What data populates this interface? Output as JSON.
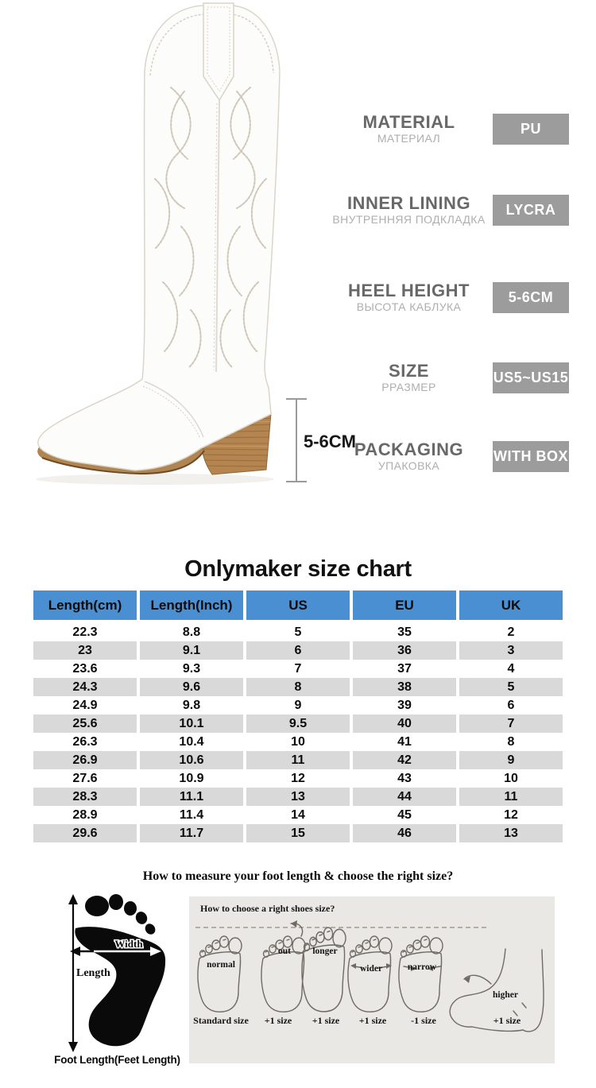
{
  "colors": {
    "table_header_bg": "#4a8fd2",
    "table_row_alt_bg": "#d9d9d9",
    "badge_bg": "#9c9c9c",
    "badge_text": "#ffffff",
    "panel_bg": "#e9e8e4",
    "heel_wood": "#b5854f"
  },
  "product": {
    "heel_annotation": "5-6CM",
    "specs": [
      {
        "label": "MATERIAL",
        "label_ru": "МАТЕРИАЛ",
        "value": "PU"
      },
      {
        "label": "INNER LINING",
        "label_ru": "ВНУТРЕННЯЯ ПОДКЛАДКА",
        "value": "LYCRA"
      },
      {
        "label": "HEEL HEIGHT",
        "label_ru": "ВЫСОТА КАБЛУКА",
        "value": "5-6CM"
      },
      {
        "label": "SIZE",
        "label_ru": "РРАЗМЕР",
        "value": "US5~US15"
      },
      {
        "label": "PACKAGING",
        "label_ru": "УПАКОВКА",
        "value": "WITH BOX"
      }
    ]
  },
  "size_chart": {
    "title": "Onlymaker size chart",
    "columns": [
      "Length(cm)",
      "Length(Inch)",
      "US",
      "EU",
      "UK"
    ],
    "rows": [
      [
        "22.3",
        "8.8",
        "5",
        "35",
        "2"
      ],
      [
        "23",
        "9.1",
        "6",
        "36",
        "3"
      ],
      [
        "23.6",
        "9.3",
        "7",
        "37",
        "4"
      ],
      [
        "24.3",
        "9.6",
        "8",
        "38",
        "5"
      ],
      [
        "24.9",
        "9.8",
        "9",
        "39",
        "6"
      ],
      [
        "25.6",
        "10.1",
        "9.5",
        "40",
        "7"
      ],
      [
        "26.3",
        "10.4",
        "10",
        "41",
        "8"
      ],
      [
        "26.9",
        "10.6",
        "11",
        "42",
        "9"
      ],
      [
        "27.6",
        "10.9",
        "12",
        "43",
        "10"
      ],
      [
        "28.3",
        "11.1",
        "13",
        "44",
        "11"
      ],
      [
        "28.9",
        "11.4",
        "14",
        "45",
        "12"
      ],
      [
        "29.6",
        "11.7",
        "15",
        "46",
        "13"
      ]
    ]
  },
  "measure_section": {
    "heading": "How to measure your foot length & choose the right size?",
    "footprint": {
      "width_label": "Width",
      "length_label": "Length",
      "caption": "Foot Length(Feet Length)"
    },
    "panel": {
      "title": "How to choose a right shoes size?",
      "feet": [
        {
          "type_label": "normal",
          "size_label": "Standard size"
        },
        {
          "type_label": "out",
          "size_label": "+1 size"
        },
        {
          "type_label": "longer",
          "size_label": "+1 size"
        },
        {
          "type_label": "wider",
          "size_label": "+1 size"
        },
        {
          "type_label": "narrow",
          "size_label": "-1 size"
        },
        {
          "type_label": "higher",
          "size_label": "+1 size"
        }
      ]
    }
  }
}
